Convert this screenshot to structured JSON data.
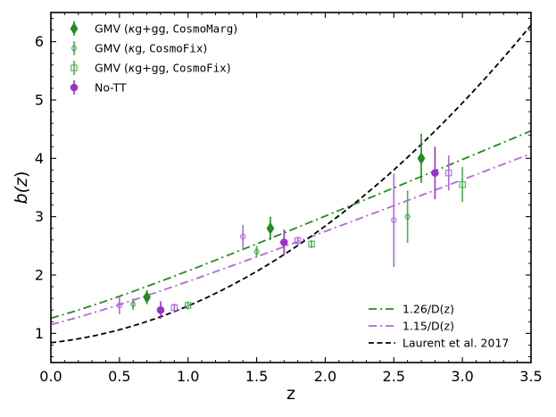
{
  "chart_data": {
    "type": "scatter",
    "xlabel": "z",
    "ylabel_parts": [
      "b(",
      "z",
      ")"
    ],
    "xlim": [
      0.0,
      3.5
    ],
    "ylim": [
      0.5,
      6.5
    ],
    "x_ticks": [
      0.0,
      0.5,
      1.0,
      1.5,
      2.0,
      2.5,
      3.0,
      3.5
    ],
    "x_tick_labels": [
      "0.0",
      "0.5",
      "1.0",
      "1.5",
      "2.0",
      "2.5",
      "3.0",
      "3.5"
    ],
    "y_ticks": [
      1,
      2,
      3,
      4,
      5,
      6
    ],
    "y_tick_labels": [
      "1",
      "2",
      "3",
      "4",
      "5",
      "6"
    ],
    "series": [
      {
        "id": "margin",
        "legend_parts": [
          "GMV (",
          "κ",
          "g+gg, ",
          "CosmoMarg",
          ")"
        ],
        "color": "#228b22",
        "marker": "diamond",
        "filled": true,
        "points": [
          {
            "x": 0.7,
            "y": 1.62,
            "err": 0.12
          },
          {
            "x": 1.6,
            "y": 2.8,
            "err": 0.2
          },
          {
            "x": 2.7,
            "y": 4.0,
            "err": 0.42
          }
        ]
      },
      {
        "id": "kg-fix",
        "legend_parts": [
          "GMV (",
          "κ",
          "g, ",
          "CosmoFix",
          ")"
        ],
        "color": "#4caf50",
        "marker": "diamond",
        "filled": false,
        "points": [
          {
            "x": 0.6,
            "y": 1.5,
            "err": 0.1
          },
          {
            "x": 1.5,
            "y": 2.4,
            "err": 0.1
          },
          {
            "x": 2.6,
            "y": 3.0,
            "err": 0.45
          }
        ]
      },
      {
        "id": "kg-gg-fix",
        "legend_parts": [
          "GMV (",
          "κ",
          "g+gg, ",
          "CosmoFix",
          ")"
        ],
        "color": "#4caf50",
        "marker": "square",
        "filled": false,
        "points": [
          {
            "x": 1.0,
            "y": 1.48,
            "err": 0.07
          },
          {
            "x": 1.9,
            "y": 2.53,
            "err": 0.07
          },
          {
            "x": 3.0,
            "y": 3.55,
            "err": 0.3
          }
        ]
      },
      {
        "id": "no-tt",
        "legend_parts": [
          "No-TT"
        ],
        "color": "#9932cc",
        "marker": "circle",
        "filled": true,
        "points": [
          {
            "x": 0.8,
            "y": 1.4,
            "err": 0.15
          },
          {
            "x": 1.7,
            "y": 2.56,
            "err": 0.22
          },
          {
            "x": 2.8,
            "y": 3.75,
            "err": 0.45
          }
        ]
      },
      {
        "id": "no-tt-open-circle",
        "legend_parts": [],
        "color": "#b266e0",
        "marker": "circle",
        "filled": false,
        "points": [
          {
            "x": 0.5,
            "y": 1.48,
            "err": 0.15
          },
          {
            "x": 1.4,
            "y": 2.66,
            "err": 0.2
          },
          {
            "x": 2.5,
            "y": 2.94,
            "err": 0.8
          }
        ]
      },
      {
        "id": "no-tt-open-square",
        "legend_parts": [],
        "color": "#b266e0",
        "marker": "square",
        "filled": false,
        "points": [
          {
            "x": 0.9,
            "y": 1.44,
            "err": 0.07
          },
          {
            "x": 1.8,
            "y": 2.59,
            "err": 0.07
          },
          {
            "x": 2.9,
            "y": 3.75,
            "err": 0.3
          }
        ]
      }
    ],
    "curves": [
      {
        "id": "fit-126",
        "label": "1.26/D(z)",
        "color": "#228b22",
        "style": "dashdot",
        "amplitude": 1.26
      },
      {
        "id": "fit-115",
        "label": "1.15/D(z)",
        "color": "#b266e0",
        "style": "dashdot",
        "amplitude": 1.15
      },
      {
        "id": "laurent",
        "label": "Laurent et al. 2017",
        "color": "#000000",
        "style": "dashed",
        "coeffs": [
          0.84,
          0.26,
          0.37
        ]
      }
    ],
    "cosmology": {
      "omega_m": 0.31
    },
    "legend_upper_position": "top-left",
    "legend_lower_position": "bottom-right"
  }
}
